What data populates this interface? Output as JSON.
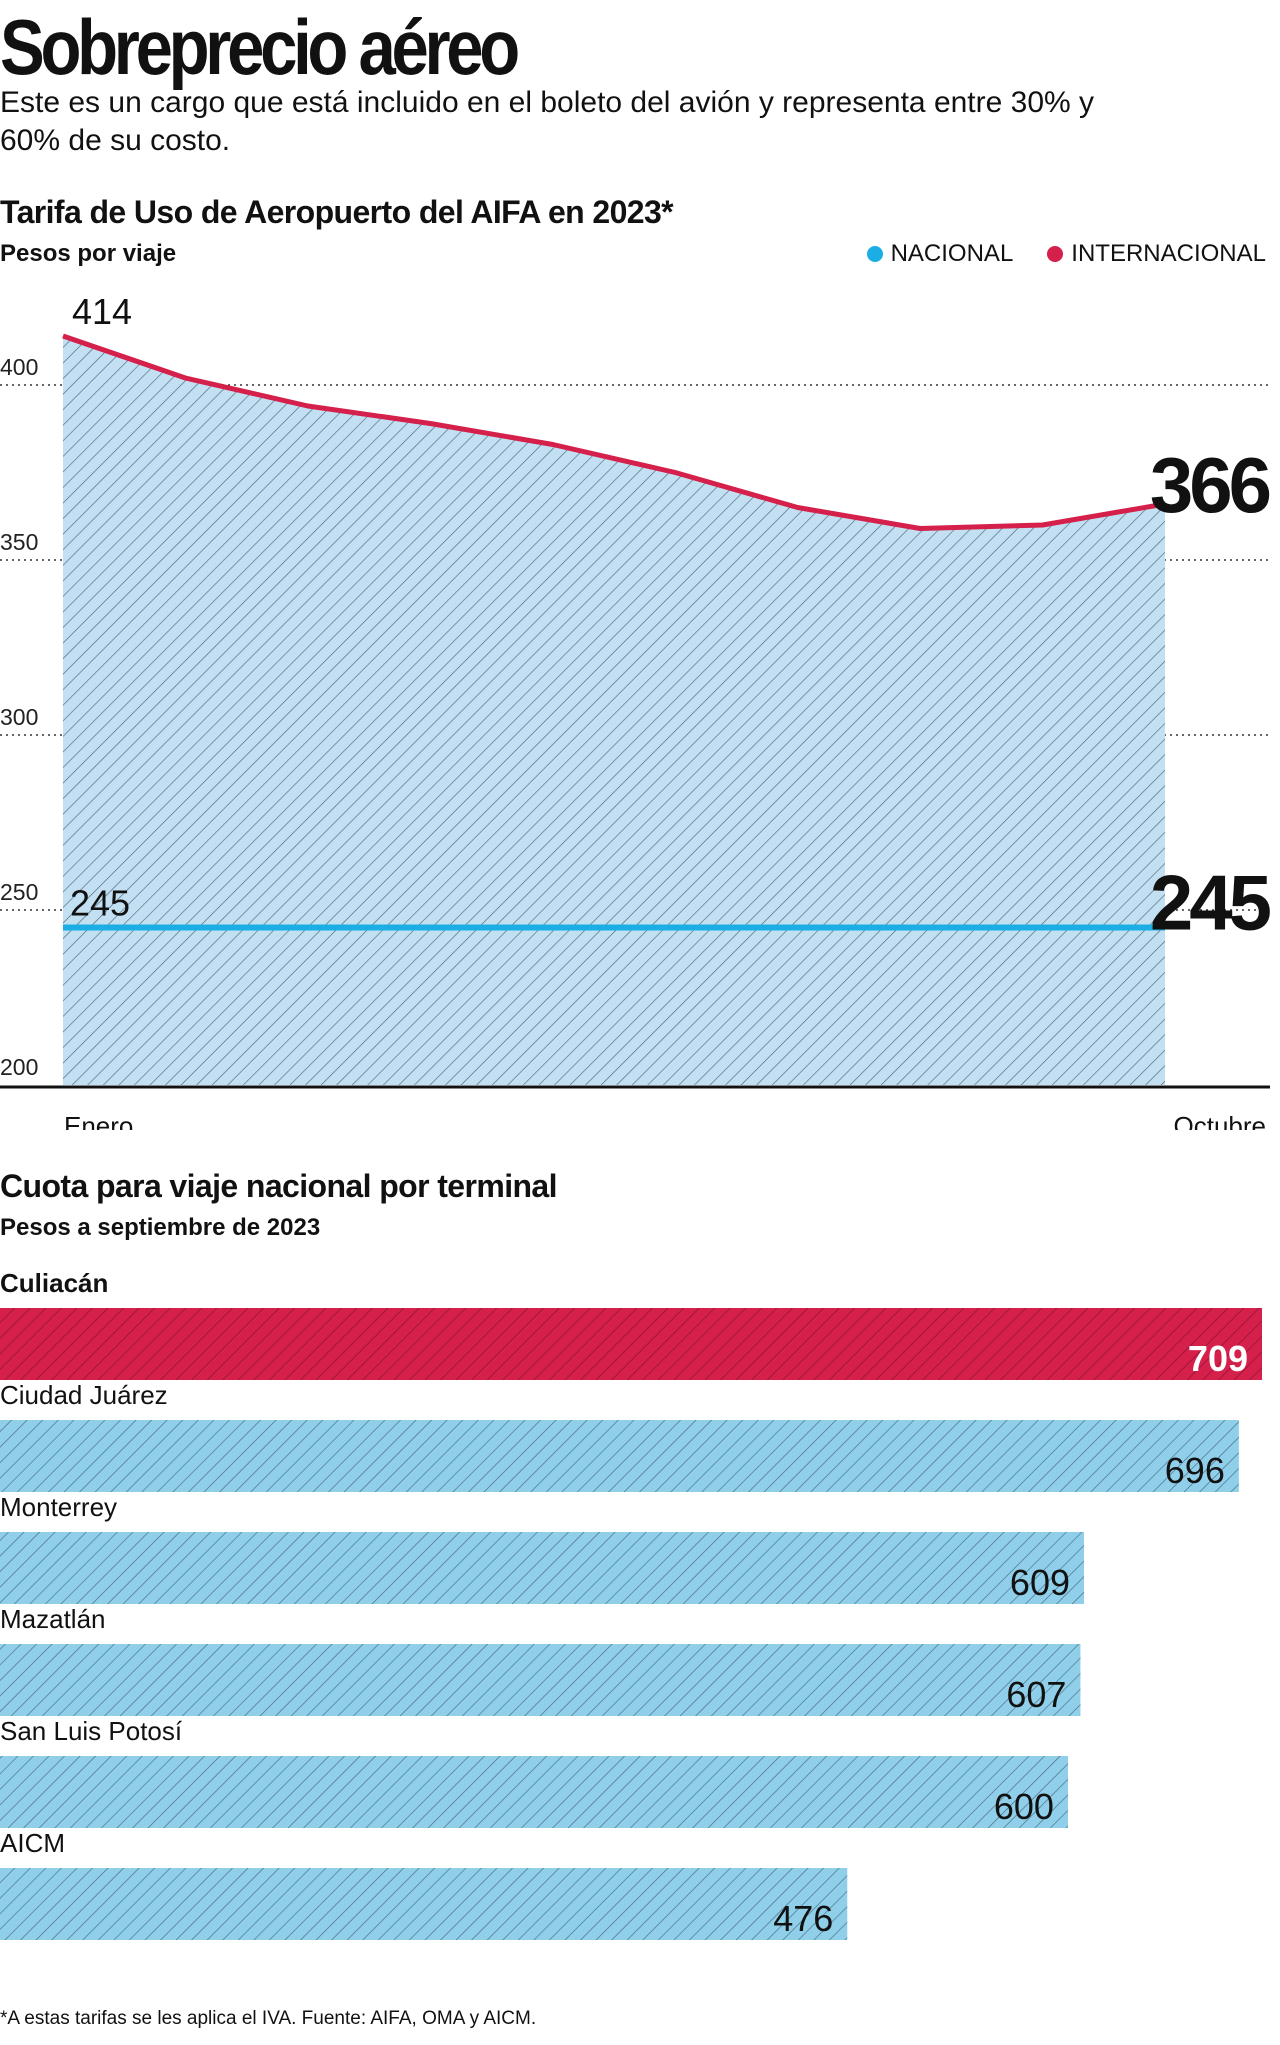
{
  "header": {
    "title": "Sobreprecio aéreo",
    "subtitle": "Este es un cargo que está incluido en el boleto del avión y representa entre 30% y 60% de su costo."
  },
  "colors": {
    "nacional": "#1aaee5",
    "internacional": "#d4204a",
    "area_fill": "#c3e0f2",
    "bar_fill": "#8fcfea",
    "highlight_bar": "#d4204a",
    "hatch": "#4a6a80"
  },
  "line_section": {
    "title": "Tarifa de Uso de Aeropuerto del AIFA en 2023*",
    "subtitle": "Pesos por viaje",
    "legend": {
      "nacional": "NACIONAL",
      "internacional": "INTERNACIONAL"
    }
  },
  "bar_section": {
    "title": "Cuota para viaje nacional por terminal",
    "subtitle": "Pesos a septiembre de 2023"
  },
  "footnote": "*A estas tarifas se les aplica el IVA. Fuente: AIFA, OMA y AICM.",
  "chart_data": [
    {
      "type": "line",
      "title": "Tarifa de Uso de Aeropuerto del AIFA en 2023*",
      "ylabel": "Pesos por viaje",
      "xlabel": "",
      "ylim": [
        200,
        420
      ],
      "yticks": [
        200,
        250,
        300,
        350,
        400
      ],
      "x_labels": [
        "Enero",
        "Octubre"
      ],
      "grid": true,
      "series": [
        {
          "name": "INTERNACIONAL",
          "values": [
            414,
            402,
            394,
            389,
            383,
            375,
            365,
            359,
            360,
            366
          ],
          "first_label": "414",
          "last_label": "366"
        },
        {
          "name": "NACIONAL",
          "values": [
            245,
            245,
            245,
            245,
            245,
            245,
            245,
            245,
            245,
            245
          ],
          "first_label": "245",
          "last_label": "245"
        }
      ]
    },
    {
      "type": "bar",
      "title": "Cuota para viaje nacional por terminal",
      "ylabel": "Pesos a septiembre de 2023",
      "orientation": "horizontal",
      "xlim": [
        0,
        709
      ],
      "categories": [
        "Culiacán",
        "Ciudad Juárez",
        "Monterrey",
        "Mazatlán",
        "San Luis Potosí",
        "AICM"
      ],
      "values": [
        709,
        696,
        609,
        607,
        600,
        476
      ],
      "value_labels": [
        "709",
        "696",
        "609",
        "607",
        "600",
        "476"
      ],
      "highlight": "Culiacán"
    }
  ]
}
